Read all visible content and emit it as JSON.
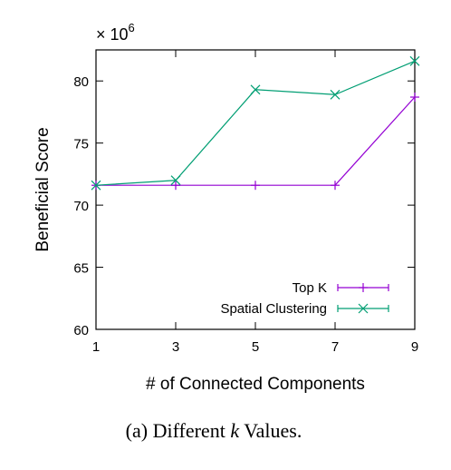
{
  "chart_data": {
    "type": "line",
    "title": "",
    "xlabel": "# of Connected Components",
    "ylabel": "Beneficial Score",
    "y_scale_prefix": "× 10",
    "y_scale_exponent": "6",
    "x": [
      1,
      3,
      5,
      7,
      9
    ],
    "xlim": [
      1,
      9
    ],
    "ylim": [
      60,
      82.5
    ],
    "x_ticks": [
      1,
      3,
      5,
      7,
      9
    ],
    "y_ticks": [
      60,
      65,
      70,
      75,
      80
    ],
    "grid": false,
    "legend_position": "bottom-right",
    "series": [
      {
        "name": "Top K",
        "values": [
          71.6,
          71.6,
          71.6,
          71.6,
          78.7
        ],
        "color": "#9400d3",
        "marker": "plus"
      },
      {
        "name": "Spatial Clustering",
        "values": [
          71.6,
          72.0,
          79.3,
          78.9,
          81.6
        ],
        "color": "#009e73",
        "marker": "cross"
      }
    ]
  },
  "caption": {
    "label": "(a)",
    "text_before": "Different",
    "variable": "k",
    "text_after": "Values."
  }
}
